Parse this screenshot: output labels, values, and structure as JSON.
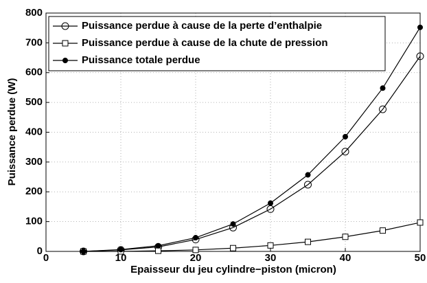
{
  "chart_data": {
    "type": "line",
    "x_label": "Epaisseur du jeu cylindre−piston (micron)",
    "y_label": "Puissance perdue (W)",
    "x": [
      5,
      10,
      15,
      20,
      25,
      30,
      35,
      40,
      45,
      50
    ],
    "series": [
      {
        "name": "Puissance perdue à cause de la perte d’enthalpie",
        "color": "#000000",
        "marker": "open-circle",
        "values": [
          0,
          5,
          15,
          40,
          80,
          142,
          224,
          335,
          477,
          655
        ]
      },
      {
        "name": "Puissance perdue à cause de la chute de pression",
        "color": "#000000",
        "marker": "open-square",
        "values": [
          0,
          0,
          2,
          5,
          11,
          20,
          32,
          49,
          70,
          97
        ]
      },
      {
        "name": "Puissance totale perdue",
        "color": "#000000",
        "marker": "filled-circle",
        "values": [
          0,
          6,
          19,
          46,
          92,
          162,
          257,
          385,
          548,
          752
        ]
      }
    ],
    "xlim": [
      0,
      50
    ],
    "xticks": [
      0,
      10,
      20,
      30,
      40,
      50
    ],
    "ylim": [
      0,
      800
    ],
    "yticks": [
      0,
      100,
      200,
      300,
      400,
      500,
      600,
      700,
      800
    ],
    "grid": true,
    "legend": "upper left"
  }
}
